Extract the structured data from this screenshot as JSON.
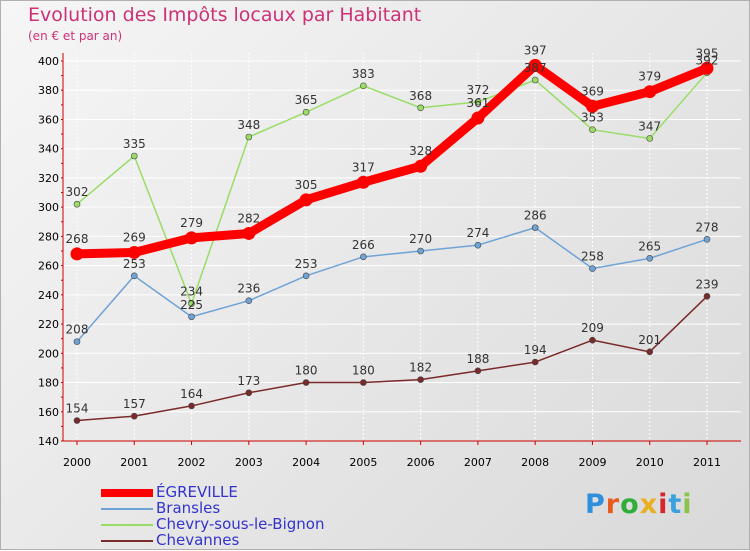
{
  "title": "Evolution des Impôts locaux par Habitant",
  "subtitle": "(en € et par an)",
  "logo": {
    "letters": [
      "P",
      "r",
      "o",
      "x",
      "i",
      "t",
      "i"
    ],
    "colors": [
      "#2f8fdd",
      "#e85b1e",
      "#2fae3a",
      "#e8b01e",
      "#d8242d",
      "#3aa0de",
      "#8bc34a"
    ]
  },
  "chart_data": {
    "type": "line",
    "x": [
      "2000",
      "2001",
      "2002",
      "2003",
      "2004",
      "2005",
      "2006",
      "2007",
      "2008",
      "2009",
      "2010",
      "2011"
    ],
    "ylim": [
      140,
      400
    ],
    "yticks": [
      140,
      160,
      180,
      200,
      220,
      240,
      260,
      280,
      300,
      320,
      340,
      360,
      380,
      400
    ],
    "grid": true,
    "legend_position": "bottom-left",
    "series": [
      {
        "name": "ÉGREVILLE",
        "color": "#ff0000",
        "values": [
          268,
          269,
          279,
          282,
          305,
          317,
          328,
          361,
          397,
          369,
          379,
          395
        ]
      },
      {
        "name": "Bransles",
        "color": "#6fa3d6",
        "values": [
          208,
          253,
          225,
          236,
          253,
          266,
          270,
          274,
          286,
          258,
          265,
          278
        ]
      },
      {
        "name": "Chevry-sous-le-Bignon",
        "color": "#99dd66",
        "values": [
          302,
          335,
          234,
          348,
          365,
          383,
          368,
          372,
          387,
          353,
          347,
          392
        ]
      },
      {
        "name": "Chevannes",
        "color": "#7a2a2a",
        "values": [
          154,
          157,
          164,
          173,
          180,
          180,
          182,
          188,
          194,
          209,
          201,
          239
        ]
      }
    ]
  }
}
